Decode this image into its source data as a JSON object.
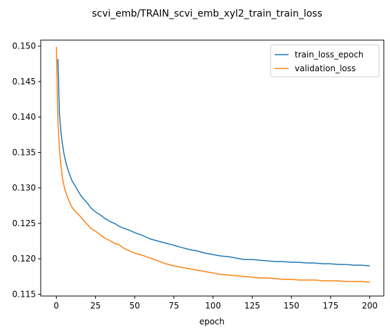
{
  "chart_data": {
    "type": "line",
    "title": "scvi_emb/TRAIN_scvi_emb_xyl2_train_train_loss",
    "xlabel": "epoch",
    "ylabel": "",
    "xlim": [
      -9.95,
      208.95
    ],
    "ylim": [
      0.11475,
      0.15085
    ],
    "x_ticks": [
      0,
      25,
      50,
      75,
      100,
      125,
      150,
      175,
      200
    ],
    "x_tick_labels": [
      "0",
      "25",
      "50",
      "75",
      "100",
      "125",
      "150",
      "175",
      "200"
    ],
    "y_ticks": [
      0.115,
      0.12,
      0.125,
      0.13,
      0.135,
      0.14,
      0.145,
      0.15
    ],
    "y_tick_labels": [
      "0.115",
      "0.120",
      "0.125",
      "0.130",
      "0.135",
      "0.140",
      "0.145",
      "0.150"
    ],
    "grid": false,
    "legend_position": "top-right",
    "series": [
      {
        "name": "train_loss_epoch",
        "color": "#1f77b4",
        "x": [
          1,
          2,
          3,
          4,
          5,
          6,
          7,
          8,
          9,
          10,
          12,
          14,
          16,
          18,
          20,
          22,
          25,
          28,
          31,
          34,
          37,
          40,
          43,
          46,
          50,
          55,
          60,
          65,
          70,
          75,
          80,
          85,
          90,
          95,
          100,
          105,
          110,
          115,
          120,
          125,
          130,
          135,
          140,
          145,
          150,
          155,
          160,
          165,
          170,
          175,
          180,
          185,
          190,
          195,
          200
        ],
        "values": [
          0.1482,
          0.1405,
          0.1378,
          0.136,
          0.1347,
          0.1337,
          0.1329,
          0.1322,
          0.1316,
          0.131,
          0.1303,
          0.1295,
          0.1288,
          0.1283,
          0.1278,
          0.1272,
          0.1266,
          0.1262,
          0.1257,
          0.1253,
          0.125,
          0.1246,
          0.1243,
          0.1241,
          0.1237,
          0.1233,
          0.1228,
          0.1225,
          0.1222,
          0.1219,
          0.1216,
          0.1213,
          0.1211,
          0.1208,
          0.1206,
          0.1204,
          0.1203,
          0.1201,
          0.1199,
          0.1199,
          0.1198,
          0.1197,
          0.1196,
          0.1196,
          0.1195,
          0.1195,
          0.1194,
          0.1194,
          0.1193,
          0.1193,
          0.1192,
          0.1192,
          0.1191,
          0.1191,
          0.119
        ]
      },
      {
        "name": "validation_loss",
        "color": "#ff7f0e",
        "x": [
          0,
          1,
          2,
          3,
          4,
          5,
          6,
          7,
          8,
          9,
          10,
          12,
          14,
          16,
          18,
          20,
          22,
          25,
          28,
          31,
          34,
          37,
          40,
          43,
          46,
          50,
          55,
          60,
          65,
          70,
          75,
          80,
          85,
          90,
          95,
          100,
          105,
          110,
          115,
          120,
          125,
          130,
          135,
          140,
          145,
          150,
          155,
          160,
          165,
          170,
          175,
          180,
          185,
          190,
          195,
          200
        ],
        "values": [
          0.1499,
          0.1395,
          0.1355,
          0.133,
          0.1313,
          0.1302,
          0.1294,
          0.1288,
          0.1282,
          0.1277,
          0.1273,
          0.1267,
          0.1263,
          0.1258,
          0.1253,
          0.1248,
          0.1243,
          0.1239,
          0.1234,
          0.1229,
          0.1226,
          0.1222,
          0.122,
          0.1215,
          0.1212,
          0.1208,
          0.1205,
          0.1201,
          0.1197,
          0.1193,
          0.119,
          0.1188,
          0.1186,
          0.1184,
          0.1182,
          0.118,
          0.1178,
          0.1177,
          0.1176,
          0.1175,
          0.1174,
          0.1173,
          0.1173,
          0.1172,
          0.1171,
          0.1171,
          0.117,
          0.117,
          0.117,
          0.1169,
          0.1169,
          0.1169,
          0.1168,
          0.1168,
          0.1168,
          0.1167
        ]
      }
    ]
  }
}
